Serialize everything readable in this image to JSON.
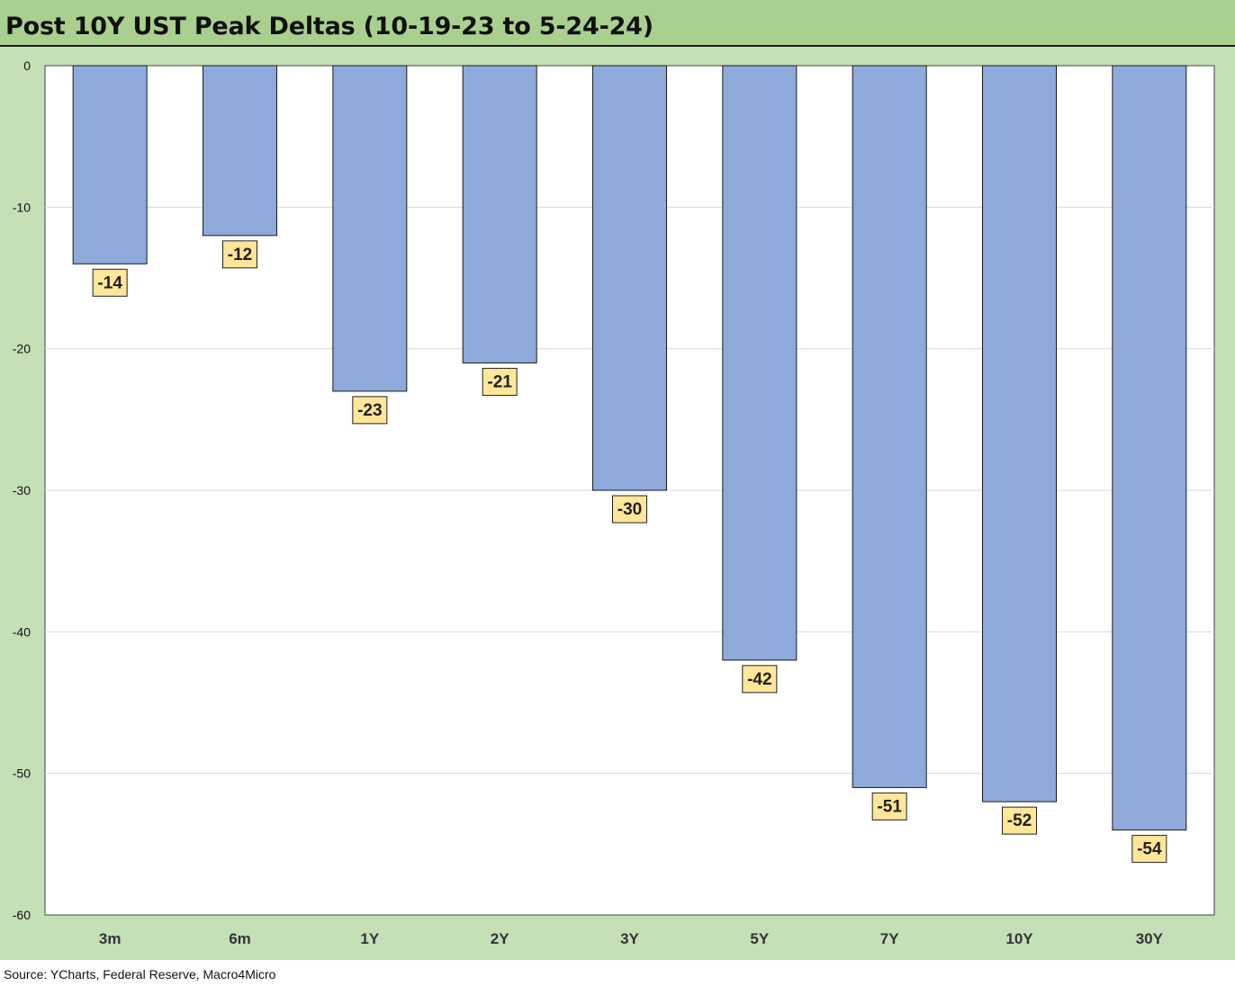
{
  "title": "Post 10Y UST Peak Deltas (10-19-23 to 5-24-24)",
  "source": "Source: YCharts, Federal Reserve, Macro4Micro",
  "colors": {
    "bar_fill": "#8eaadb",
    "bar_stroke": "#1a1a1a",
    "label_fill": "#ffe699",
    "gridline": "#d9d9d9",
    "background": "#c5dfb7",
    "title_band": "#a9d08e"
  },
  "chart_data": {
    "type": "bar",
    "title": "Post 10Y UST Peak Deltas (10-19-23 to 5-24-24)",
    "categories": [
      "3m",
      "6m",
      "1Y",
      "2Y",
      "3Y",
      "5Y",
      "7Y",
      "10Y",
      "30Y"
    ],
    "values": [
      -14,
      -12,
      -23,
      -21,
      -30,
      -42,
      -51,
      -52,
      -54
    ],
    "data_labels": [
      "-14",
      "-12",
      "-23",
      "-21",
      "-30",
      "-42",
      "-51",
      "-52",
      "-54"
    ],
    "yticks": [
      0,
      -10,
      -20,
      -30,
      -40,
      -50,
      -60
    ],
    "ytick_labels": [
      "0",
      "-10",
      "-20",
      "-30",
      "-40",
      "-50",
      "-60"
    ],
    "ylim": [
      -60,
      0
    ],
    "xlabel": "",
    "ylabel": "",
    "grid": "horizontal",
    "legend": "none"
  }
}
